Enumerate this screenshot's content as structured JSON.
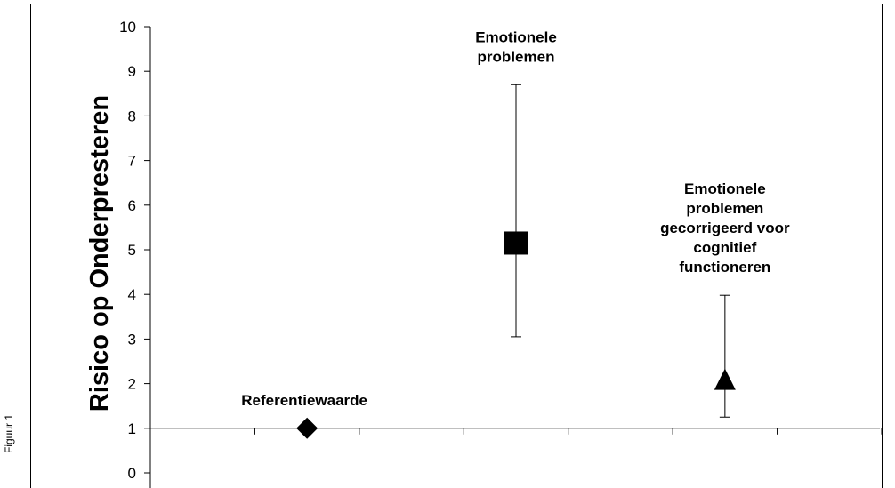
{
  "side_label": "Figuur 1",
  "chart_data": {
    "type": "scatter",
    "title": "",
    "xlabel": "",
    "ylabel": "Risico op Onderpresteren",
    "ylim": [
      0,
      10
    ],
    "yticks": [
      0,
      1,
      2,
      3,
      4,
      5,
      6,
      7,
      8,
      9,
      10
    ],
    "grid": false,
    "baseline": 1,
    "x_slots": 7,
    "points": [
      {
        "slot": 2,
        "y": 1.0,
        "marker": "diamond",
        "label_lines": [
          "Referentiewaarde"
        ]
      },
      {
        "slot": 4,
        "y": 5.15,
        "ci": [
          3.05,
          8.7
        ],
        "marker": "square",
        "label_lines": [
          "Emotionele",
          "problemen"
        ]
      },
      {
        "slot": 6,
        "y": 2.1,
        "ci": [
          1.25,
          3.98
        ],
        "marker": "triangle",
        "label_lines": [
          "Emotionele",
          "problemen",
          "gecorrigeerd voor",
          "cognitief",
          "functioneren"
        ]
      }
    ]
  }
}
